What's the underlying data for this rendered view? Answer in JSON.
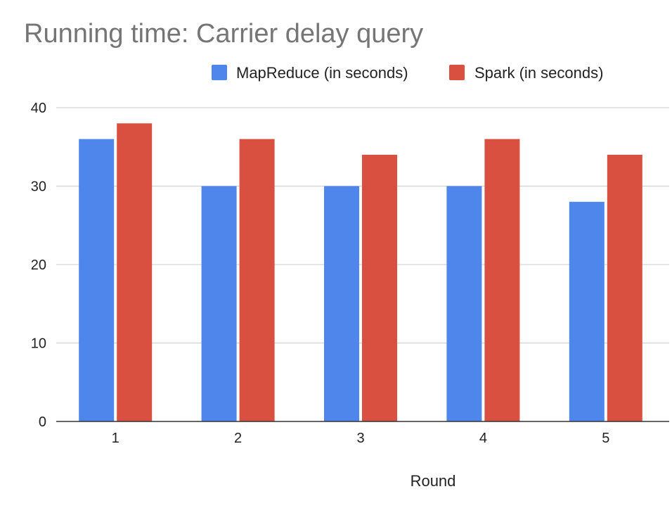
{
  "chart_data": {
    "type": "bar",
    "title": "Running time: Carrier delay query",
    "xlabel": "Round",
    "ylabel": "",
    "categories": [
      "1",
      "2",
      "3",
      "4",
      "5"
    ],
    "series": [
      {
        "name": "MapReduce (in seconds)",
        "color": "#4f86ec",
        "values": [
          36,
          30,
          30,
          30,
          28
        ]
      },
      {
        "name": "Spark (in seconds)",
        "color": "#d95040",
        "values": [
          38,
          36,
          34,
          36,
          34
        ]
      }
    ],
    "ylim": [
      0,
      40
    ],
    "yticks": [
      0,
      10,
      20,
      30,
      40
    ],
    "grid": true,
    "legend_position": "top-right"
  }
}
